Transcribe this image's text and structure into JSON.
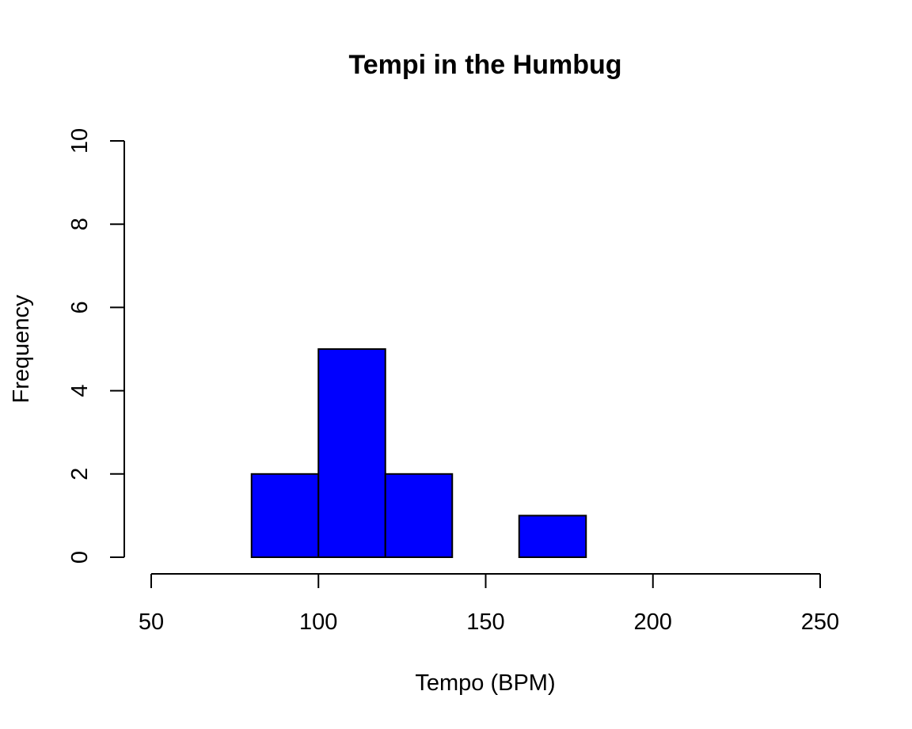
{
  "chart_data": {
    "type": "bar",
    "title": "Tempi in the Humbug",
    "xlabel": "Tempo (BPM)",
    "ylabel": "Frequency",
    "bins": [
      {
        "start": 80,
        "end": 100,
        "count": 2
      },
      {
        "start": 100,
        "end": 120,
        "count": 5
      },
      {
        "start": 120,
        "end": 140,
        "count": 2
      },
      {
        "start": 140,
        "end": 160,
        "count": 0
      },
      {
        "start": 160,
        "end": 180,
        "count": 1
      }
    ],
    "xlim": [
      50,
      250
    ],
    "ylim": [
      0,
      10
    ],
    "x_ticks": [
      50,
      100,
      150,
      200,
      250
    ],
    "x_tick_labels": [
      "50",
      "100",
      "150",
      "200",
      "250"
    ],
    "y_ticks": [
      0,
      2,
      4,
      6,
      8,
      10
    ],
    "y_tick_labels": [
      "0",
      "2",
      "4",
      "6",
      "8",
      "10"
    ],
    "bar_color": "#0000ff",
    "bar_border_color": "#000000",
    "grid": false,
    "legend": "none"
  }
}
